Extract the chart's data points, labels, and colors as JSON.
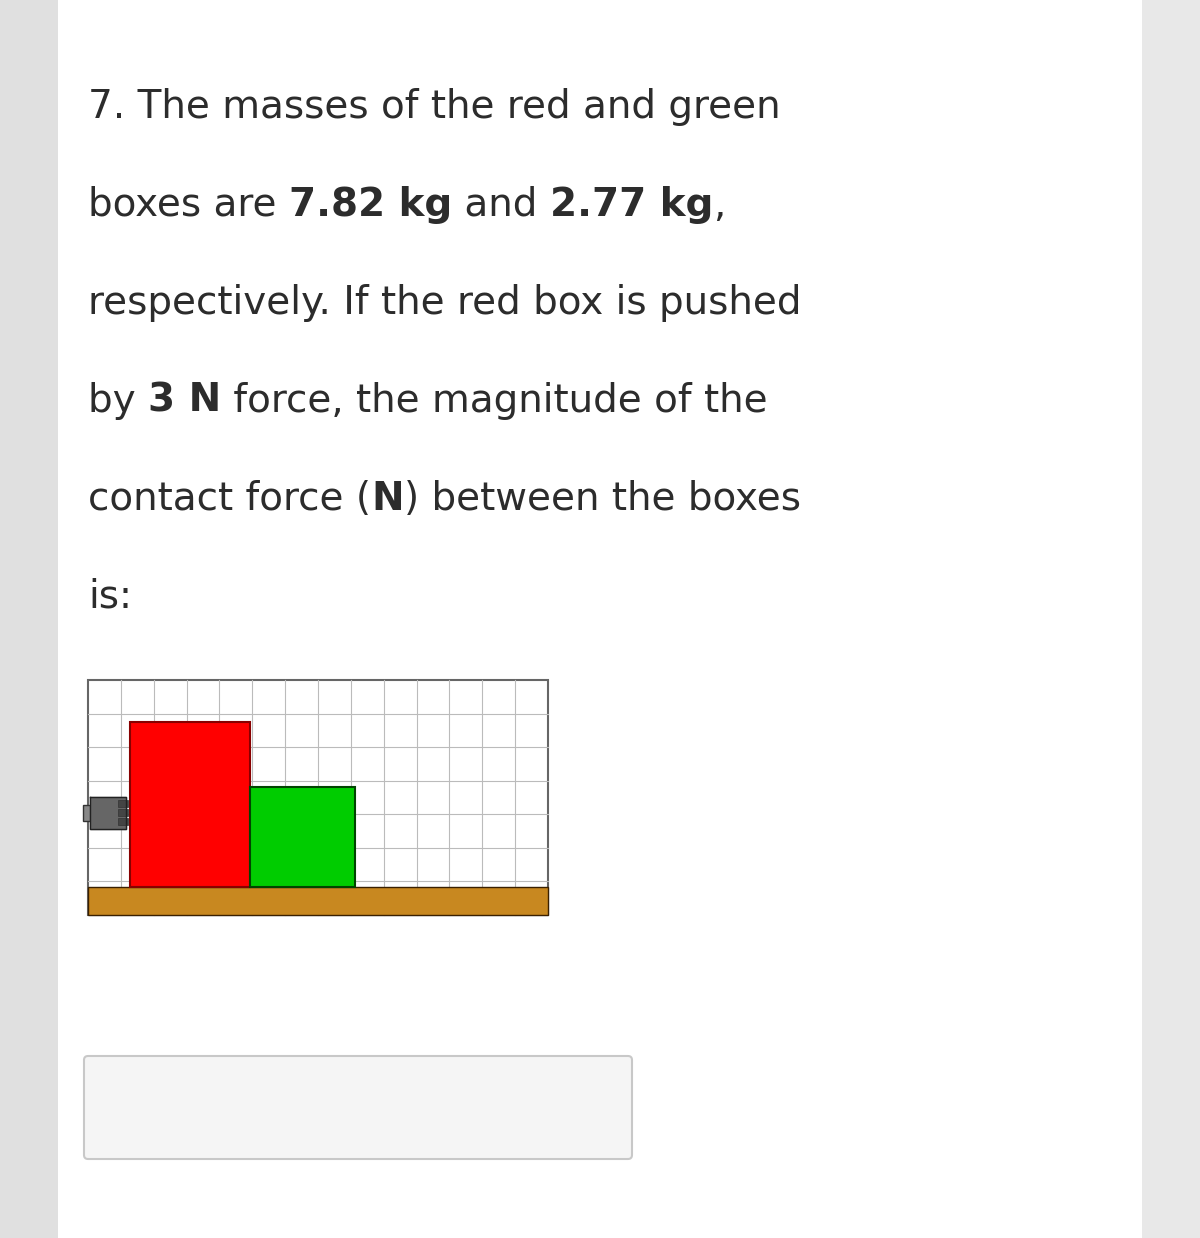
{
  "bg_color": "#ffffff",
  "left_strip_color": "#e0e0e0",
  "right_strip_color": "#e8e8e8",
  "text_color": "#2c2c2c",
  "font_size_pt": 28,
  "red_box_color": "#ff0000",
  "green_box_color": "#00cc00",
  "floor_color": "#c88820",
  "grid_color": "#bbbbbb",
  "grid_bg": "#ffffff",
  "answer_box_border": "#c8c8c8",
  "answer_box_bg": "#f5f5f5",
  "line1": "7. The masses of the red and green",
  "line2_pre": "boxes are ",
  "line2_b1": "7.82 kg",
  "line2_mid": " and ",
  "line2_b2": "2.77 kg",
  "line2_post": ",",
  "line3": "respectively. If the red box is pushed",
  "line4_pre": "by ",
  "line4_b1": "3 N",
  "line4_post": " force, the magnitude of the",
  "line5_pre": "contact force (",
  "line5_b1": "N",
  "line5_post": ") between the boxes",
  "line6": "is:",
  "fig_width": 12.0,
  "fig_height": 12.38,
  "dpi": 100
}
